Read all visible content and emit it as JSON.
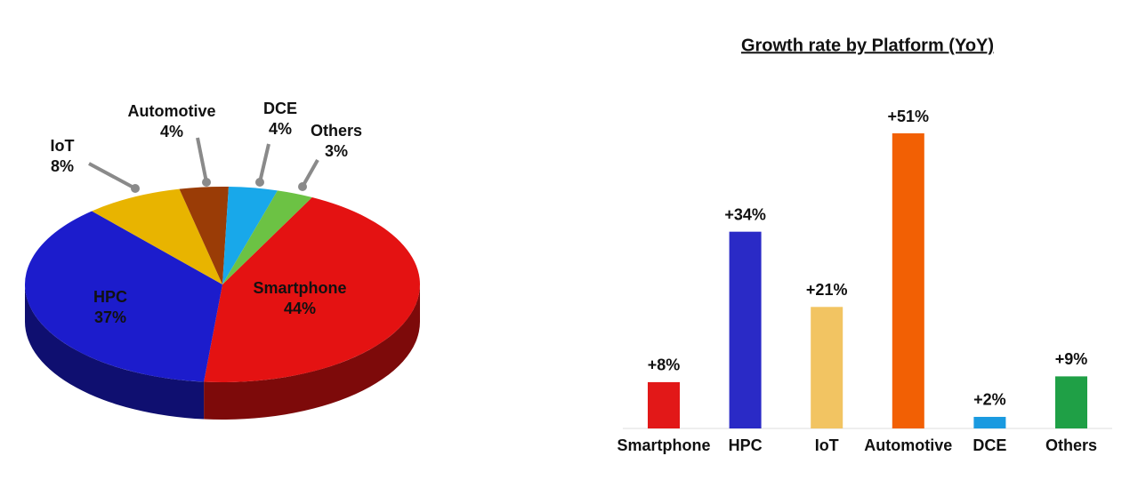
{
  "chart_data": [
    {
      "type": "pie",
      "categories": [
        "Smartphone",
        "HPC",
        "IoT",
        "Automotive",
        "DCE",
        "Others"
      ],
      "values": [
        44,
        37,
        8,
        4,
        4,
        3
      ],
      "value_labels": [
        "44%",
        "37%",
        "8%",
        "4%",
        "4%",
        "3%"
      ],
      "colors": [
        "#e41212",
        "#1c1ccc",
        "#e8b400",
        "#9a3c06",
        "#18a8ea",
        "#6cc244"
      ]
    },
    {
      "type": "bar",
      "title": "Growth rate by Platform (YoY)",
      "categories": [
        "Smartphone",
        "HPC",
        "IoT",
        "Automotive",
        "DCE",
        "Others"
      ],
      "values": [
        8,
        34,
        21,
        51,
        2,
        9
      ],
      "value_labels": [
        "+8%",
        "+34%",
        "+21%",
        "+51%",
        "+2%",
        "+9%"
      ],
      "colors": [
        "#e21818",
        "#2a2ac6",
        "#f2c462",
        "#f26004",
        "#1a9ae0",
        "#1fa046"
      ]
    }
  ]
}
